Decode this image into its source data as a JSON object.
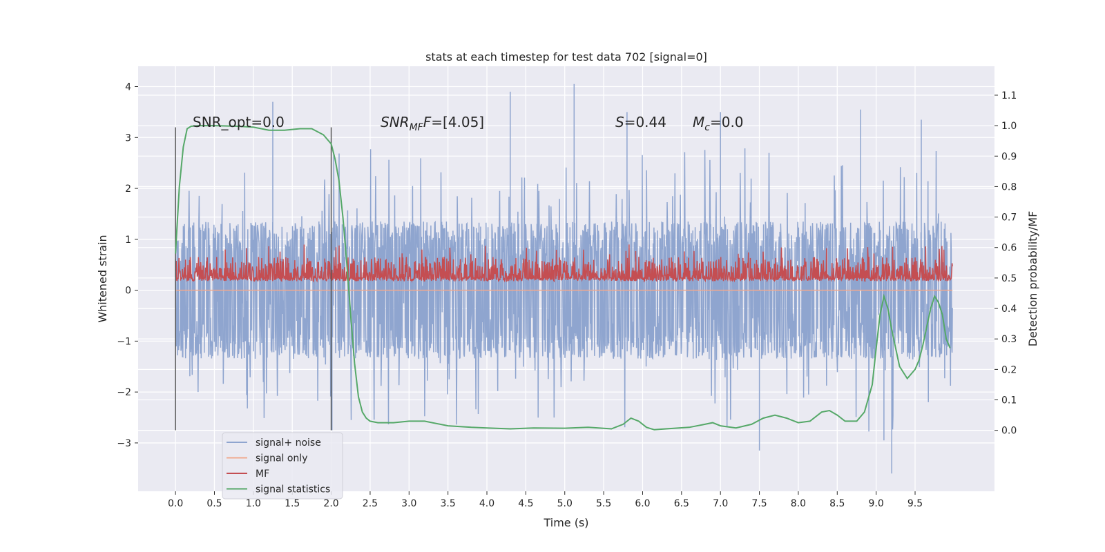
{
  "chart_data": {
    "type": "line",
    "title": "stats at each timestep for test data 702 [signal=0]",
    "xlabel": "Time (s)",
    "ylabel": "Whitened strain",
    "y2label": "Detection probability/MF",
    "xlim": [
      -0.48,
      10.52
    ],
    "ylim": [
      -3.95,
      4.4
    ],
    "y2lim": [
      -0.2,
      1.195
    ],
    "x_ticks": [
      0.0,
      0.5,
      1.0,
      1.5,
      2.0,
      2.5,
      3.0,
      3.5,
      4.0,
      4.5,
      5.0,
      5.5,
      6.0,
      6.5,
      7.0,
      7.5,
      8.0,
      8.5,
      9.0,
      9.5
    ],
    "x_tick_labels": [
      "0.0",
      "0.5",
      "1.0",
      "1.5",
      "2.0",
      "2.5",
      "3.0",
      "3.5",
      "4.0",
      "4.5",
      "5.0",
      "5.5",
      "6.0",
      "6.5",
      "7.0",
      "7.5",
      "8.0",
      "8.5",
      "9.0",
      "9.5"
    ],
    "y_ticks": [
      -3,
      -2,
      -1,
      0,
      1,
      2,
      3,
      4
    ],
    "y_tick_labels": [
      "−3",
      "−2",
      "−1",
      "0",
      "1",
      "2",
      "3",
      "4"
    ],
    "y2_ticks": [
      0.0,
      0.1,
      0.2,
      0.3,
      0.4,
      0.5,
      0.6,
      0.7,
      0.8,
      0.9,
      1.0,
      1.1
    ],
    "y2_tick_labels": [
      "0.0",
      "0.1",
      "0.2",
      "0.3",
      "0.4",
      "0.5",
      "0.6",
      "0.7",
      "0.8",
      "0.9",
      "1.0",
      "1.1"
    ],
    "grid": true,
    "legend_position": "lower-left",
    "legend": [
      {
        "label": "signal+ noise",
        "color": "#8fa5cf"
      },
      {
        "label": "signal only",
        "color": "#f0a98e"
      },
      {
        "label": "MF",
        "color": "#c44e52"
      },
      {
        "label": "signal statistics",
        "color": "#55a868"
      }
    ],
    "annotations": {
      "snr_opt": "SNR_opt=0.0",
      "snr_mf_name": "SNR",
      "snr_mf_sub": "MF",
      "snr_mf_value": "=[4.05]",
      "s_name": "S",
      "s_value": "=0.44",
      "mc_name": "M",
      "mc_sub": "c",
      "mc_value": "=0.0"
    },
    "window_markers_x": [
      0.0,
      2.0
    ],
    "window_markers_y": [
      -2.75,
      3.2
    ],
    "series": [
      {
        "name": "signal+ noise",
        "axis": "left",
        "color": "#8fa5cf",
        "x_range": [
          0.0,
          9.98
        ],
        "sample_count": 2000,
        "typical_range": [
          -1.35,
          1.35
        ],
        "extremes": [
          {
            "x": 1.25,
            "y": 3.7
          },
          {
            "x": 2.01,
            "y": -2.75
          },
          {
            "x": 4.3,
            "y": 3.9
          },
          {
            "x": 5.12,
            "y": 4.05
          },
          {
            "x": 5.8,
            "y": 3.5
          },
          {
            "x": 7.0,
            "y": 3.5
          },
          {
            "x": 7.5,
            "y": -3.15
          },
          {
            "x": 8.8,
            "y": 3.55
          },
          {
            "x": 9.1,
            "y": -2.95
          },
          {
            "x": 9.2,
            "y": -3.6
          },
          {
            "x": 9.58,
            "y": 3.35
          }
        ]
      },
      {
        "name": "signal only",
        "axis": "left",
        "color": "#f0a98e",
        "x": [
          0.0,
          9.98
        ],
        "y": [
          0.0,
          0.0
        ]
      },
      {
        "name": "MF",
        "axis": "right",
        "color": "#c44e52",
        "x_range": [
          0.0,
          9.98
        ],
        "sample_count": 2000,
        "baseline": 0.5,
        "typical_max": 0.57,
        "peak": 0.61
      },
      {
        "name": "signal statistics",
        "axis": "right",
        "color": "#55a868",
        "x": [
          0.0,
          0.05,
          0.1,
          0.15,
          0.2,
          0.3,
          0.5,
          0.8,
          1.0,
          1.2,
          1.4,
          1.6,
          1.75,
          1.9,
          2.0,
          2.05,
          2.1,
          2.15,
          2.2,
          2.25,
          2.3,
          2.35,
          2.4,
          2.45,
          2.5,
          2.6,
          2.7,
          2.8,
          3.0,
          3.2,
          3.5,
          3.8,
          4.0,
          4.3,
          4.6,
          5.0,
          5.3,
          5.6,
          5.75,
          5.85,
          5.95,
          6.05,
          6.15,
          6.3,
          6.6,
          6.8,
          6.9,
          7.0,
          7.2,
          7.4,
          7.55,
          7.7,
          7.85,
          8.0,
          8.15,
          8.3,
          8.4,
          8.5,
          8.6,
          8.75,
          8.85,
          8.95,
          9.0,
          9.05,
          9.1,
          9.15,
          9.2,
          9.3,
          9.4,
          9.5,
          9.55,
          9.6,
          9.65,
          9.7,
          9.75,
          9.8,
          9.85,
          9.9,
          9.95
        ],
        "y": [
          0.58,
          0.8,
          0.93,
          0.99,
          0.998,
          1.0,
          1.0,
          0.998,
          0.995,
          0.985,
          0.985,
          0.99,
          0.99,
          0.97,
          0.94,
          0.89,
          0.82,
          0.7,
          0.55,
          0.38,
          0.22,
          0.11,
          0.06,
          0.04,
          0.03,
          0.025,
          0.025,
          0.025,
          0.03,
          0.03,
          0.015,
          0.01,
          0.008,
          0.005,
          0.008,
          0.007,
          0.01,
          0.005,
          0.02,
          0.04,
          0.03,
          0.01,
          0.002,
          0.005,
          0.01,
          0.02,
          0.025,
          0.015,
          0.008,
          0.02,
          0.04,
          0.05,
          0.04,
          0.025,
          0.03,
          0.06,
          0.065,
          0.05,
          0.03,
          0.03,
          0.06,
          0.15,
          0.27,
          0.38,
          0.44,
          0.4,
          0.33,
          0.21,
          0.17,
          0.2,
          0.23,
          0.28,
          0.34,
          0.4,
          0.44,
          0.42,
          0.38,
          0.3,
          0.27
        ]
      }
    ]
  }
}
